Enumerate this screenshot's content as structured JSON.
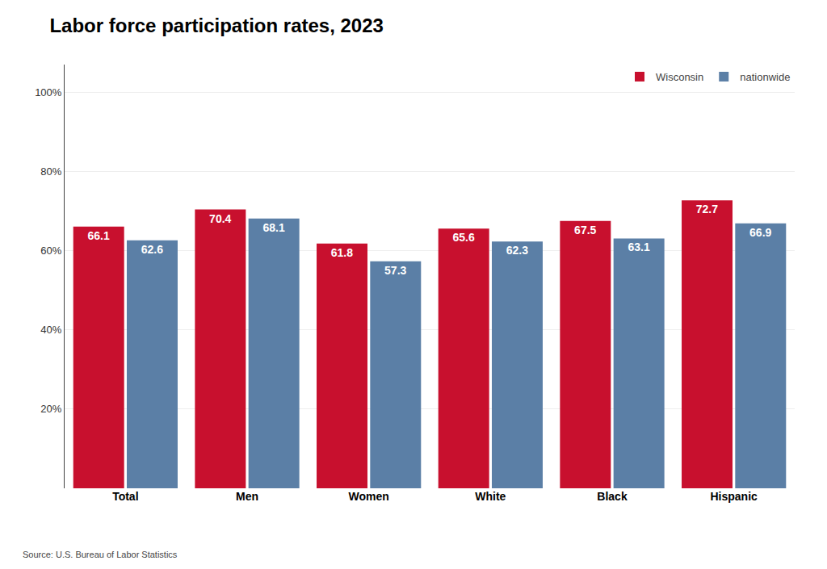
{
  "chart_data": {
    "type": "bar",
    "title": "Labor force participation rates, 2023",
    "source": "Source: U.S. Bureau of Labor Statistics",
    "categories": [
      "Total",
      "Men",
      "Women",
      "White",
      "Black",
      "Hispanic"
    ],
    "series": [
      {
        "name": "Wisconsin",
        "color": "#C8102E",
        "values": [
          66.1,
          70.4,
          61.8,
          65.6,
          67.5,
          72.7
        ]
      },
      {
        "name": "nationwide",
        "color": "#5B7FA6",
        "values": [
          62.6,
          68.1,
          57.3,
          62.3,
          63.1,
          66.9
        ]
      }
    ],
    "ylim": [
      0,
      107
    ],
    "yticks": [
      {
        "value": 20,
        "label": "20%"
      },
      {
        "value": 40,
        "label": "40%"
      },
      {
        "value": 60,
        "label": "60%"
      },
      {
        "value": 80,
        "label": "80%"
      },
      {
        "value": 100,
        "label": "100%"
      }
    ],
    "grid": true,
    "legend": "upper right",
    "data_labels": true
  }
}
